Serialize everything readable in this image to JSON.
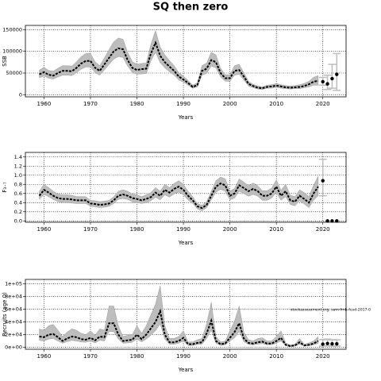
{
  "title": "SQ then zero",
  "chart_data": [
    {
      "type": "line",
      "ylabel": "SSB",
      "xlabel": "Years",
      "x": [
        1959,
        1960,
        1961,
        1962,
        1963,
        1964,
        1965,
        1966,
        1967,
        1968,
        1969,
        1970,
        1971,
        1972,
        1973,
        1974,
        1975,
        1976,
        1977,
        1978,
        1979,
        1980,
        1981,
        1982,
        1983,
        1984,
        1985,
        1986,
        1987,
        1988,
        1989,
        1990,
        1991,
        1992,
        1993,
        1994,
        1995,
        1996,
        1997,
        1998,
        1999,
        2000,
        2001,
        2002,
        2003,
        2004,
        2005,
        2006,
        2007,
        2008,
        2009,
        2010,
        2011,
        2012,
        2013,
        2014,
        2015,
        2016,
        2017,
        2018,
        2019
      ],
      "values": [
        47000,
        52000,
        46000,
        44000,
        50000,
        55000,
        55000,
        54000,
        62000,
        72000,
        78000,
        78000,
        62000,
        55000,
        70000,
        85000,
        100000,
        107000,
        105000,
        80000,
        62000,
        57000,
        59000,
        60000,
        95000,
        120000,
        90000,
        75000,
        65000,
        55000,
        42000,
        35000,
        27000,
        18000,
        22000,
        55000,
        60000,
        80000,
        75000,
        50000,
        38000,
        38000,
        55000,
        57000,
        42000,
        25000,
        20000,
        16000,
        15000,
        18000,
        19000,
        21000,
        19000,
        17000,
        16000,
        17000,
        18000,
        20000,
        24000,
        30000,
        32000
      ],
      "lower": [
        39000,
        43000,
        38000,
        36000,
        41000,
        45000,
        45000,
        44000,
        51000,
        59000,
        64000,
        64000,
        51000,
        45000,
        57000,
        70000,
        82000,
        88000,
        86000,
        66000,
        51000,
        47000,
        48000,
        49000,
        78000,
        98000,
        74000,
        62000,
        53000,
        45000,
        34000,
        29000,
        22000,
        15000,
        18000,
        45000,
        49000,
        66000,
        62000,
        41000,
        31000,
        31000,
        45000,
        47000,
        34000,
        20000,
        16000,
        13000,
        12000,
        15000,
        15000,
        17000,
        15000,
        14000,
        13000,
        14000,
        14000,
        16000,
        18000,
        22000,
        22000
      ],
      "upper": [
        57000,
        63000,
        56000,
        54000,
        61000,
        67000,
        67000,
        66000,
        76000,
        88000,
        95000,
        95000,
        76000,
        67000,
        85000,
        104000,
        122000,
        131000,
        128000,
        98000,
        76000,
        70000,
        72000,
        73000,
        116000,
        148000,
        110000,
        92000,
        79000,
        67000,
        51000,
        43000,
        33000,
        22000,
        27000,
        67000,
        73000,
        98000,
        92000,
        61000,
        46000,
        46000,
        67000,
        70000,
        51000,
        31000,
        24000,
        20000,
        18000,
        22000,
        23000,
        26000,
        23000,
        21000,
        20000,
        21000,
        23000,
        26000,
        31000,
        40000,
        44000
      ],
      "forecast": {
        "x": [
          2020,
          2021,
          2022,
          2023
        ],
        "values": [
          30000,
          25000,
          37000,
          47000
        ],
        "lower": [
          22000,
          12000,
          15000,
          10000
        ],
        "upper": [
          40000,
          45000,
          70000,
          95000
        ]
      },
      "xlim": [
        1956,
        2025
      ],
      "xticks": [
        1960,
        1970,
        1980,
        1990,
        2000,
        2010,
        2020
      ],
      "ylim": [
        -5000,
        160000
      ],
      "yticks": [
        0,
        50000,
        100000,
        150000
      ],
      "grid": true,
      "color": "#000000",
      "band_color": "#bdbdbd",
      "forecast_color": "#bdbdbd"
    },
    {
      "type": "line",
      "ylabel": "F₃₋₇",
      "xlabel": "Years",
      "x": [
        1959,
        1960,
        1961,
        1962,
        1963,
        1964,
        1965,
        1966,
        1967,
        1968,
        1969,
        1970,
        1971,
        1972,
        1973,
        1974,
        1975,
        1976,
        1977,
        1978,
        1979,
        1980,
        1981,
        1982,
        1983,
        1984,
        1985,
        1986,
        1987,
        1988,
        1989,
        1990,
        1991,
        1992,
        1993,
        1994,
        1995,
        1996,
        1997,
        1998,
        1999,
        2000,
        2001,
        2002,
        2003,
        2004,
        2005,
        2006,
        2007,
        2008,
        2009,
        2010,
        2011,
        2012,
        2013,
        2014,
        2015,
        2016,
        2017,
        2018,
        2019
      ],
      "values": [
        0.55,
        0.68,
        0.62,
        0.55,
        0.5,
        0.48,
        0.48,
        0.47,
        0.45,
        0.45,
        0.45,
        0.38,
        0.37,
        0.35,
        0.36,
        0.38,
        0.45,
        0.55,
        0.58,
        0.55,
        0.5,
        0.48,
        0.45,
        0.48,
        0.52,
        0.62,
        0.55,
        0.68,
        0.62,
        0.7,
        0.75,
        0.68,
        0.55,
        0.45,
        0.32,
        0.28,
        0.35,
        0.55,
        0.75,
        0.82,
        0.78,
        0.55,
        0.6,
        0.78,
        0.72,
        0.65,
        0.7,
        0.65,
        0.55,
        0.55,
        0.6,
        0.75,
        0.55,
        0.65,
        0.45,
        0.42,
        0.55,
        0.48,
        0.4,
        0.6,
        0.75
      ],
      "lower": [
        0.47,
        0.58,
        0.53,
        0.47,
        0.42,
        0.4,
        0.4,
        0.39,
        0.38,
        0.38,
        0.38,
        0.32,
        0.31,
        0.29,
        0.3,
        0.32,
        0.38,
        0.47,
        0.49,
        0.47,
        0.42,
        0.4,
        0.38,
        0.4,
        0.44,
        0.52,
        0.46,
        0.57,
        0.52,
        0.59,
        0.63,
        0.57,
        0.46,
        0.38,
        0.26,
        0.22,
        0.29,
        0.46,
        0.63,
        0.69,
        0.65,
        0.46,
        0.5,
        0.65,
        0.6,
        0.54,
        0.58,
        0.54,
        0.45,
        0.45,
        0.5,
        0.62,
        0.45,
        0.53,
        0.36,
        0.33,
        0.44,
        0.37,
        0.29,
        0.45,
        0.55
      ],
      "upper": [
        0.65,
        0.8,
        0.73,
        0.65,
        0.59,
        0.57,
        0.57,
        0.56,
        0.53,
        0.53,
        0.53,
        0.45,
        0.44,
        0.42,
        0.43,
        0.45,
        0.53,
        0.65,
        0.68,
        0.65,
        0.59,
        0.57,
        0.53,
        0.57,
        0.62,
        0.73,
        0.65,
        0.8,
        0.73,
        0.82,
        0.88,
        0.8,
        0.65,
        0.53,
        0.38,
        0.34,
        0.42,
        0.65,
        0.88,
        0.96,
        0.92,
        0.65,
        0.71,
        0.92,
        0.85,
        0.77,
        0.83,
        0.77,
        0.66,
        0.66,
        0.72,
        0.9,
        0.67,
        0.8,
        0.56,
        0.53,
        0.68,
        0.62,
        0.53,
        0.78,
        0.98
      ],
      "forecast": {
        "x": [
          2020,
          2021,
          2022,
          2023
        ],
        "values": [
          0.88,
          0,
          0,
          0
        ],
        "lower": [
          0.55,
          null,
          null,
          null
        ],
        "upper": [
          1.35,
          null,
          null,
          null
        ]
      },
      "xlim": [
        1956,
        2025
      ],
      "xticks": [
        1960,
        1970,
        1980,
        1990,
        2000,
        2010,
        2020
      ],
      "ylim": [
        -0.03,
        1.5
      ],
      "yticks": [
        {
          "value": 0,
          "label": "0.0"
        },
        0.2,
        0.4,
        0.6,
        0.8,
        {
          "value": 1,
          "label": "1.0"
        },
        1.2,
        1.4
      ],
      "grid": true,
      "color": "#000000",
      "band_color": "#bdbdbd",
      "forecast_color": "#bdbdbd"
    },
    {
      "type": "line",
      "ylabel": "Recruits (age 0)",
      "xlabel": "Years",
      "annotation": "stockassessment.org, sam-fmb-fcod-2017-0",
      "x": [
        1959,
        1960,
        1961,
        1962,
        1963,
        1964,
        1965,
        1966,
        1967,
        1968,
        1969,
        1970,
        1971,
        1972,
        1973,
        1974,
        1975,
        1976,
        1977,
        1978,
        1979,
        1980,
        1981,
        1982,
        1983,
        1984,
        1985,
        1986,
        1987,
        1988,
        1989,
        1990,
        1991,
        1992,
        1993,
        1994,
        1995,
        1996,
        1997,
        1998,
        1999,
        2000,
        2001,
        2002,
        2003,
        2004,
        2005,
        2006,
        2007,
        2008,
        2009,
        2010,
        2011,
        2012,
        2013,
        2014,
        2015,
        2016,
        2017,
        2018,
        2019
      ],
      "values": [
        17000,
        16000,
        20000,
        21000,
        16000,
        10000,
        14000,
        17000,
        16000,
        13000,
        12000,
        15000,
        11000,
        17000,
        16000,
        38000,
        38000,
        20000,
        10000,
        11000,
        12000,
        20000,
        13000,
        20000,
        30000,
        40000,
        57000,
        20000,
        8000,
        8000,
        10000,
        15000,
        5000,
        5000,
        7000,
        8000,
        22000,
        42000,
        10000,
        5000,
        6000,
        15000,
        24000,
        38000,
        14000,
        7000,
        6000,
        8000,
        9000,
        6000,
        6000,
        10000,
        15000,
        4000,
        2000,
        3000,
        8000,
        3000,
        4000,
        6000,
        10000
      ],
      "lower": [
        11000,
        10000,
        13000,
        14000,
        10000,
        6500,
        9000,
        11000,
        10000,
        8500,
        8000,
        10000,
        7000,
        11000,
        10000,
        25000,
        25000,
        13000,
        6500,
        7000,
        8000,
        13000,
        8500,
        13000,
        19000,
        26000,
        37000,
        13000,
        5000,
        5000,
        6500,
        10000,
        3000,
        3000,
        4500,
        5000,
        14000,
        27000,
        6500,
        3000,
        4000,
        10000,
        15000,
        25000,
        9000,
        4500,
        4000,
        5000,
        6000,
        4000,
        4000,
        6500,
        10000,
        2500,
        1200,
        2000,
        5000,
        2000,
        2500,
        4000,
        6000
      ],
      "upper": [
        29000,
        27000,
        34000,
        36000,
        27000,
        17000,
        24000,
        29000,
        27000,
        22000,
        20000,
        26000,
        19000,
        29000,
        27000,
        65000,
        65000,
        34000,
        17000,
        19000,
        20000,
        34000,
        22000,
        34000,
        51000,
        68000,
        97000,
        34000,
        14000,
        14000,
        17000,
        26000,
        8500,
        8500,
        12000,
        14000,
        37000,
        71000,
        17000,
        8500,
        10000,
        26000,
        41000,
        65000,
        24000,
        12000,
        10000,
        14000,
        15000,
        10000,
        10000,
        17000,
        26000,
        7000,
        3500,
        5000,
        14000,
        5000,
        7000,
        10000,
        17000
      ],
      "forecast": {
        "x": [
          2020,
          2021,
          2022,
          2023
        ],
        "values": [
          5000,
          6000,
          5500,
          5500
        ],
        "lower": [
          2000,
          2500,
          2000,
          2000
        ],
        "upper": [
          12000,
          13000,
          12000,
          12000
        ]
      },
      "xlim": [
        1956,
        2025
      ],
      "xticks": [
        1960,
        1970,
        1980,
        1990,
        2000,
        2010,
        2020
      ],
      "ylim": [
        -3000,
        107000
      ],
      "yticks": [
        {
          "value": 0,
          "label": "0e+00"
        },
        {
          "value": 20000,
          "label": "2e+04"
        },
        {
          "value": 40000,
          "label": "4e+04"
        },
        {
          "value": 60000,
          "label": "6e+04"
        },
        {
          "value": 80000,
          "label": "8e+04"
        },
        {
          "value": 100000,
          "label": "1e+05"
        }
      ],
      "grid": true,
      "color": "#000000",
      "band_color": "#bdbdbd",
      "forecast_color": "#bdbdbd"
    }
  ]
}
